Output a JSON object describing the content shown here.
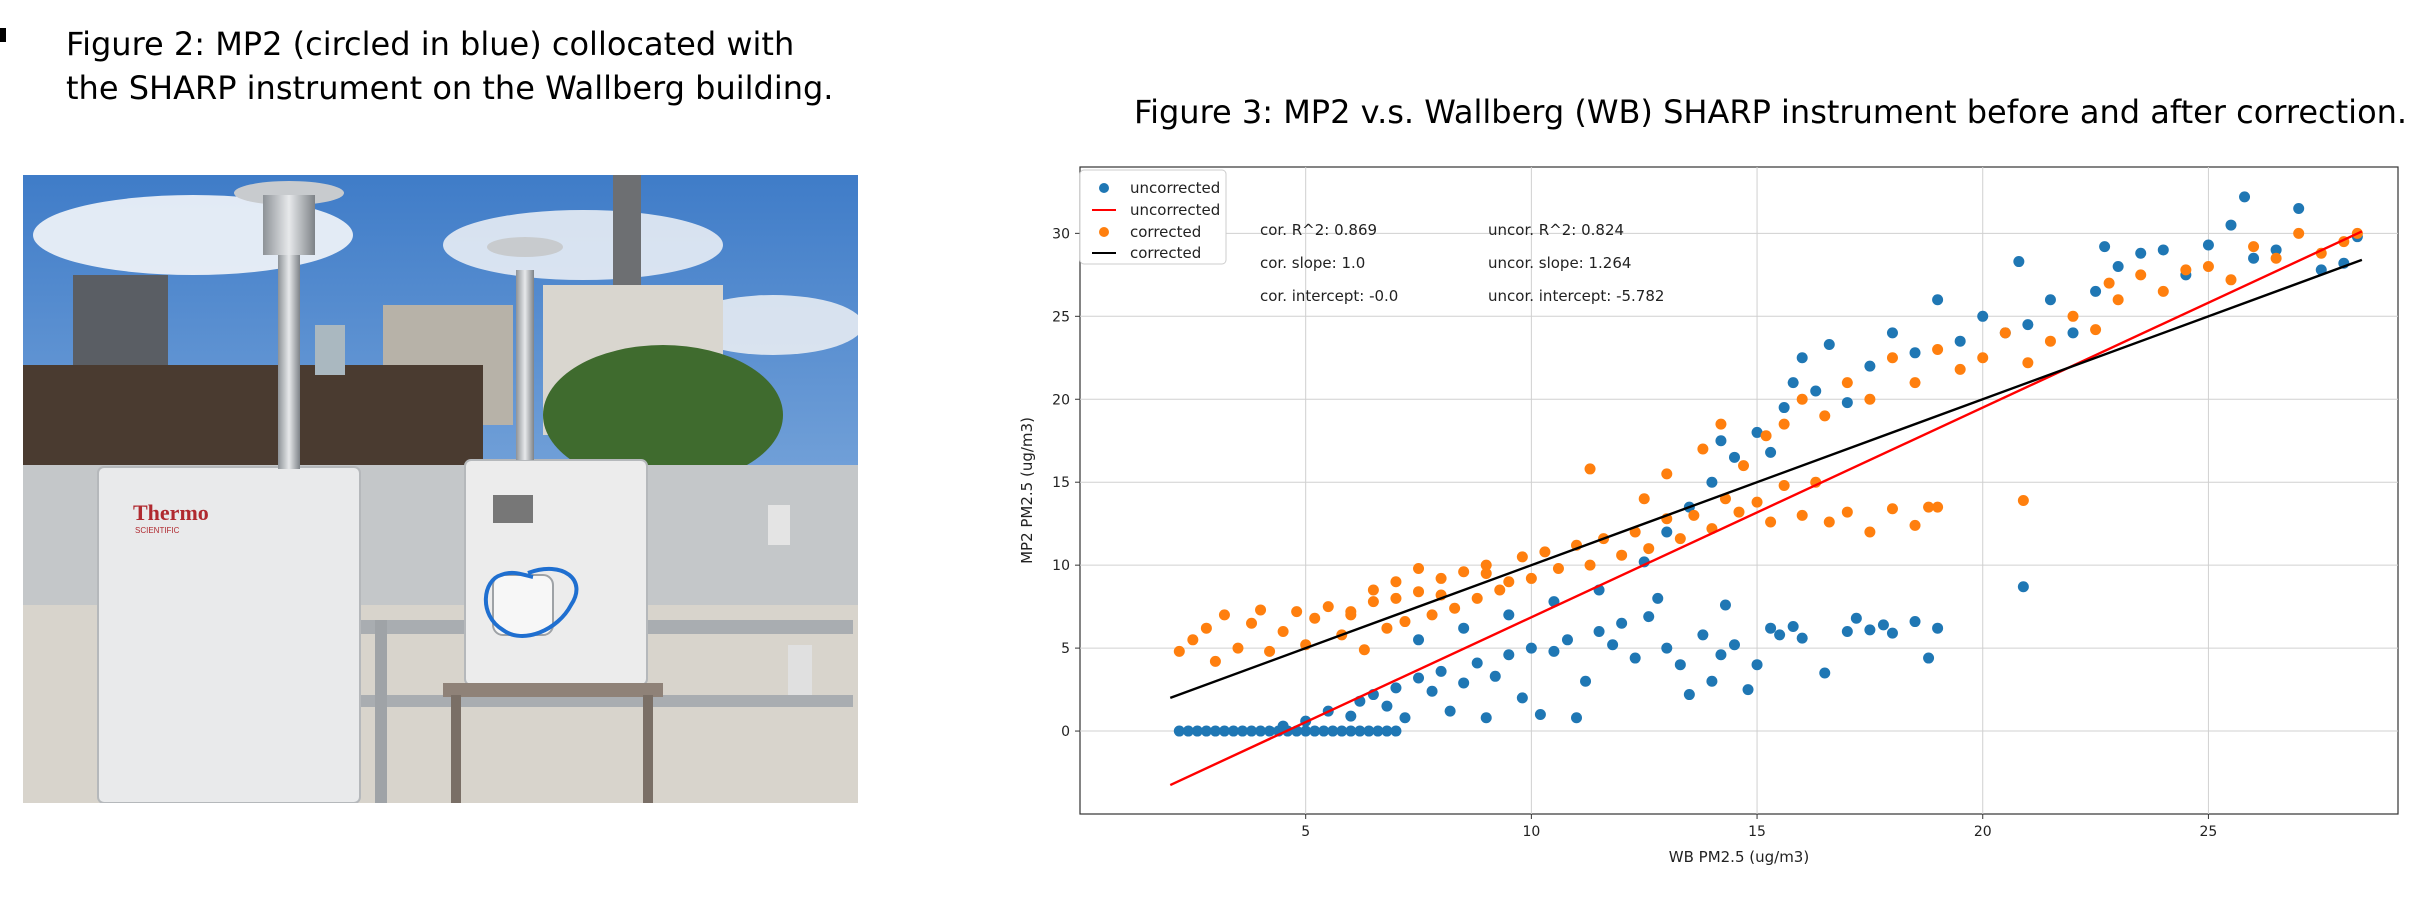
{
  "captions": {
    "fig2_line1": "Figure 2: MP2 (circled in blue) collocated with",
    "fig2_line2": "the SHARP instrument on the Wallberg building.",
    "fig3": "Figure 3: MP2 v.s. Wallberg (WB) SHARP instrument before and after correction."
  },
  "photo": {
    "brand": "Thermo",
    "brand_sub": "SCIENTIFIC",
    "highlight_color": "#1f6fd0"
  },
  "chart_data": {
    "type": "scatter",
    "xlabel": "WB PM2.5 (ug/m3)",
    "ylabel": "MP2 PM2.5 (ug/m3)",
    "xlim": [
      0,
      29.2
    ],
    "ylim": [
      -5,
      34
    ],
    "xticks": [
      5,
      10,
      15,
      20,
      25
    ],
    "yticks": [
      0,
      5,
      10,
      15,
      20,
      25,
      30
    ],
    "grid": true,
    "legend_position": "top-left",
    "legend": [
      {
        "label": "uncorrected",
        "kind": "marker",
        "color": "#1f77b4"
      },
      {
        "label": "uncorrected",
        "kind": "line",
        "color": "#ff0000"
      },
      {
        "label": "corrected",
        "kind": "marker",
        "color": "#ff7f0e"
      },
      {
        "label": "corrected",
        "kind": "line",
        "color": "#000000"
      }
    ],
    "annotations": {
      "cor_r2": "cor. R^2: 0.869",
      "cor_slope": "cor. slope: 1.0",
      "cor_intercept": "cor. intercept: -0.0",
      "uncor_r2": "uncor. R^2: 0.824",
      "uncor_slope": "uncor. slope: 1.264",
      "uncor_intercept": "uncor. intercept: -5.782"
    },
    "fit_lines": [
      {
        "name": "uncorrected",
        "color": "#ff0000",
        "slope": 1.264,
        "intercept": -5.782,
        "x_range": [
          2.0,
          28.4
        ]
      },
      {
        "name": "corrected",
        "color": "#000000",
        "slope": 1.0,
        "intercept": 0.0,
        "x_range": [
          2.0,
          28.4
        ]
      }
    ],
    "series": [
      {
        "name": "uncorrected",
        "color": "#1f77b4",
        "points": [
          [
            2.2,
            0
          ],
          [
            2.6,
            0
          ],
          [
            3.0,
            0
          ],
          [
            3.4,
            0
          ],
          [
            3.8,
            0
          ],
          [
            4.2,
            0
          ],
          [
            4.6,
            0
          ],
          [
            5.0,
            0
          ],
          [
            5.4,
            0
          ],
          [
            5.8,
            0
          ],
          [
            6.2,
            0
          ],
          [
            6.6,
            0
          ],
          [
            7.0,
            0
          ],
          [
            2.4,
            0
          ],
          [
            2.8,
            0
          ],
          [
            3.2,
            0
          ],
          [
            3.6,
            0
          ],
          [
            4.0,
            0
          ],
          [
            4.4,
            0
          ],
          [
            4.8,
            0
          ],
          [
            5.2,
            0
          ],
          [
            5.6,
            0
          ],
          [
            6.0,
            0
          ],
          [
            6.4,
            0
          ],
          [
            6.8,
            0
          ],
          [
            4.5,
            0.3
          ],
          [
            5.0,
            0.6
          ],
          [
            5.5,
            1.2
          ],
          [
            6.0,
            0.9
          ],
          [
            6.2,
            1.8
          ],
          [
            6.5,
            2.2
          ],
          [
            6.8,
            1.5
          ],
          [
            7.0,
            2.6
          ],
          [
            7.2,
            0.8
          ],
          [
            7.5,
            3.2
          ],
          [
            7.8,
            2.4
          ],
          [
            8.0,
            3.6
          ],
          [
            8.2,
            1.2
          ],
          [
            8.5,
            2.9
          ],
          [
            8.8,
            4.1
          ],
          [
            9.0,
            0.8
          ],
          [
            9.2,
            3.3
          ],
          [
            9.5,
            4.6
          ],
          [
            9.8,
            2.0
          ],
          [
            10.0,
            5.0
          ],
          [
            10.2,
            1.0
          ],
          [
            10.5,
            4.8
          ],
          [
            10.8,
            5.5
          ],
          [
            11.0,
            0.8
          ],
          [
            11.2,
            3.0
          ],
          [
            11.5,
            6.0
          ],
          [
            11.8,
            5.2
          ],
          [
            12.0,
            6.5
          ],
          [
            12.3,
            4.4
          ],
          [
            12.6,
            6.9
          ],
          [
            13.0,
            5.0
          ],
          [
            13.3,
            4.0
          ],
          [
            13.5,
            2.2
          ],
          [
            13.8,
            5.8
          ],
          [
            14.0,
            3.0
          ],
          [
            14.2,
            4.6
          ],
          [
            14.5,
            5.2
          ],
          [
            14.8,
            2.5
          ],
          [
            15.0,
            4.0
          ],
          [
            15.3,
            6.2
          ],
          [
            15.5,
            5.8
          ],
          [
            15.8,
            6.3
          ],
          [
            16.0,
            5.6
          ],
          [
            16.5,
            3.5
          ],
          [
            17.0,
            6.0
          ],
          [
            17.2,
            6.8
          ],
          [
            17.5,
            6.1
          ],
          [
            17.8,
            6.4
          ],
          [
            18.0,
            5.9
          ],
          [
            18.5,
            6.6
          ],
          [
            18.8,
            4.4
          ],
          [
            19.0,
            6.2
          ],
          [
            7.5,
            5.5
          ],
          [
            8.5,
            6.2
          ],
          [
            9.5,
            7.0
          ],
          [
            10.5,
            7.8
          ],
          [
            11.5,
            8.5
          ],
          [
            12.5,
            10.2
          ],
          [
            13.0,
            12.0
          ],
          [
            13.5,
            13.5
          ],
          [
            14.0,
            15.0
          ],
          [
            14.2,
            17.5
          ],
          [
            14.5,
            16.5
          ],
          [
            15.0,
            18.0
          ],
          [
            15.3,
            16.8
          ],
          [
            15.6,
            19.5
          ],
          [
            15.8,
            21.0
          ],
          [
            16.0,
            22.5
          ],
          [
            16.3,
            20.5
          ],
          [
            16.6,
            23.3
          ],
          [
            17.0,
            19.8
          ],
          [
            17.5,
            22.0
          ],
          [
            18.0,
            24.0
          ],
          [
            18.5,
            22.8
          ],
          [
            19.0,
            26.0
          ],
          [
            19.5,
            23.5
          ],
          [
            20.0,
            25.0
          ],
          [
            20.5,
            24.0
          ],
          [
            20.8,
            28.3
          ],
          [
            21.0,
            24.5
          ],
          [
            21.5,
            26.0
          ],
          [
            22.0,
            24.0
          ],
          [
            22.5,
            26.5
          ],
          [
            22.7,
            29.2
          ],
          [
            23.0,
            28.0
          ],
          [
            23.5,
            28.8
          ],
          [
            24.0,
            29.0
          ],
          [
            24.5,
            27.5
          ],
          [
            25.0,
            29.3
          ],
          [
            25.5,
            30.5
          ],
          [
            25.8,
            32.2
          ],
          [
            26.0,
            28.5
          ],
          [
            26.5,
            29.0
          ],
          [
            27.0,
            31.5
          ],
          [
            27.5,
            27.8
          ],
          [
            28.0,
            28.2
          ],
          [
            28.3,
            29.8
          ],
          [
            20.9,
            8.7
          ],
          [
            14.3,
            7.6
          ],
          [
            12.8,
            8.0
          ]
        ]
      },
      {
        "name": "corrected",
        "color": "#ff7f0e",
        "points": [
          [
            2.2,
            4.8
          ],
          [
            2.5,
            5.5
          ],
          [
            2.8,
            6.2
          ],
          [
            3.0,
            4.2
          ],
          [
            3.2,
            7.0
          ],
          [
            3.5,
            5.0
          ],
          [
            3.8,
            6.5
          ],
          [
            4.0,
            7.3
          ],
          [
            4.2,
            4.8
          ],
          [
            4.5,
            6.0
          ],
          [
            4.8,
            7.2
          ],
          [
            5.0,
            5.2
          ],
          [
            5.2,
            6.8
          ],
          [
            5.5,
            7.5
          ],
          [
            5.8,
            5.8
          ],
          [
            6.0,
            7.0
          ],
          [
            6.3,
            4.9
          ],
          [
            6.5,
            7.8
          ],
          [
            6.8,
            6.2
          ],
          [
            7.0,
            8.0
          ],
          [
            7.2,
            6.6
          ],
          [
            7.5,
            8.4
          ],
          [
            7.8,
            7.0
          ],
          [
            8.0,
            9.2
          ],
          [
            8.3,
            7.4
          ],
          [
            8.5,
            9.6
          ],
          [
            8.8,
            8.0
          ],
          [
            9.0,
            10.0
          ],
          [
            9.3,
            8.5
          ],
          [
            9.5,
            9.0
          ],
          [
            9.8,
            10.5
          ],
          [
            10.0,
            9.2
          ],
          [
            10.3,
            10.8
          ],
          [
            10.6,
            9.8
          ],
          [
            11.0,
            11.2
          ],
          [
            11.3,
            10.0
          ],
          [
            11.6,
            11.6
          ],
          [
            12.0,
            10.6
          ],
          [
            12.3,
            12.0
          ],
          [
            12.6,
            11.0
          ],
          [
            13.0,
            12.8
          ],
          [
            13.3,
            11.6
          ],
          [
            13.6,
            13.0
          ],
          [
            14.0,
            12.2
          ],
          [
            14.3,
            14.0
          ],
          [
            14.6,
            13.2
          ],
          [
            15.0,
            13.8
          ],
          [
            15.3,
            12.6
          ],
          [
            15.6,
            14.8
          ],
          [
            16.0,
            13.0
          ],
          [
            16.3,
            15.0
          ],
          [
            16.6,
            12.6
          ],
          [
            17.0,
            13.2
          ],
          [
            17.5,
            12.0
          ],
          [
            18.0,
            13.4
          ],
          [
            18.5,
            12.4
          ],
          [
            18.8,
            13.5
          ],
          [
            19.0,
            13.5
          ],
          [
            20.9,
            13.9
          ],
          [
            11.3,
            15.8
          ],
          [
            12.5,
            14.0
          ],
          [
            13.0,
            15.5
          ],
          [
            13.8,
            17.0
          ],
          [
            14.2,
            18.5
          ],
          [
            14.7,
            16.0
          ],
          [
            15.2,
            17.8
          ],
          [
            15.6,
            18.5
          ],
          [
            16.0,
            20.0
          ],
          [
            16.5,
            19.0
          ],
          [
            17.0,
            21.0
          ],
          [
            17.5,
            20.0
          ],
          [
            18.0,
            22.5
          ],
          [
            18.5,
            21.0
          ],
          [
            19.0,
            23.0
          ],
          [
            19.5,
            21.8
          ],
          [
            20.0,
            22.5
          ],
          [
            20.5,
            24.0
          ],
          [
            21.0,
            22.2
          ],
          [
            21.5,
            23.5
          ],
          [
            22.0,
            25.0
          ],
          [
            22.5,
            24.2
          ],
          [
            22.8,
            27.0
          ],
          [
            23.0,
            26.0
          ],
          [
            23.5,
            27.5
          ],
          [
            24.0,
            26.5
          ],
          [
            24.5,
            27.8
          ],
          [
            25.0,
            28.0
          ],
          [
            25.5,
            27.2
          ],
          [
            26.0,
            29.2
          ],
          [
            26.5,
            28.5
          ],
          [
            27.0,
            30.0
          ],
          [
            27.5,
            28.8
          ],
          [
            28.0,
            29.5
          ],
          [
            28.3,
            30.0
          ],
          [
            6.0,
            7.2
          ],
          [
            6.5,
            8.5
          ],
          [
            7.0,
            9.0
          ],
          [
            7.5,
            9.8
          ],
          [
            8.0,
            8.2
          ],
          [
            9.0,
            9.5
          ]
        ]
      }
    ]
  }
}
